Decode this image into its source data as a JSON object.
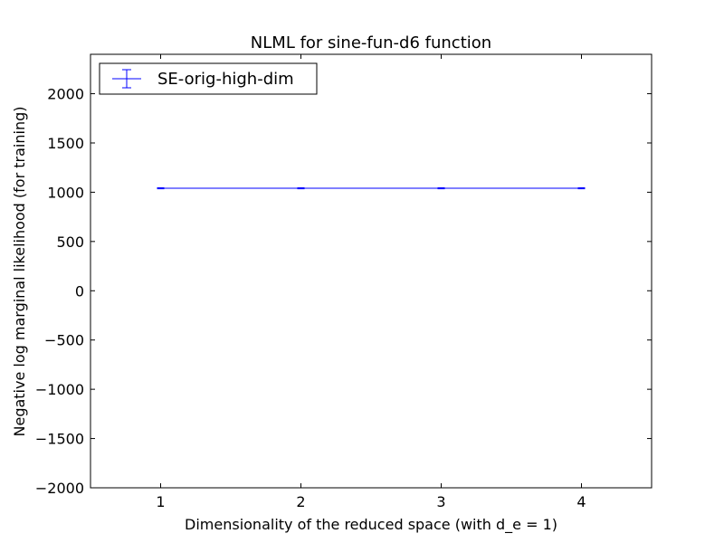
{
  "chart_data": {
    "type": "line",
    "title": "NLML for sine-fun-d6 function",
    "xlabel": "Dimensionality of the reduced space (with d_e = 1)",
    "ylabel": "Negative log marginal likelihood (for training)",
    "xlim": [
      0.5,
      4.5
    ],
    "ylim": [
      -2000,
      2400
    ],
    "xticks": [
      1,
      2,
      3,
      4
    ],
    "xtick_labels": [
      "1",
      "2",
      "3",
      "4"
    ],
    "yticks": [
      -2000,
      -1500,
      -1000,
      -500,
      0,
      500,
      1000,
      1500,
      2000
    ],
    "ytick_labels": [
      "−2000",
      "−1500",
      "−1000",
      "−500",
      "0",
      "500",
      "1000",
      "1500",
      "2000"
    ],
    "grid": false,
    "legend_position": "top-left",
    "series": [
      {
        "name": "SE-orig-high-dim",
        "color": "#0000ff",
        "x": [
          1,
          2,
          3,
          4
        ],
        "y": [
          1040,
          1040,
          1040,
          1040
        ],
        "yerr": [
          5,
          5,
          5,
          5
        ]
      }
    ]
  }
}
